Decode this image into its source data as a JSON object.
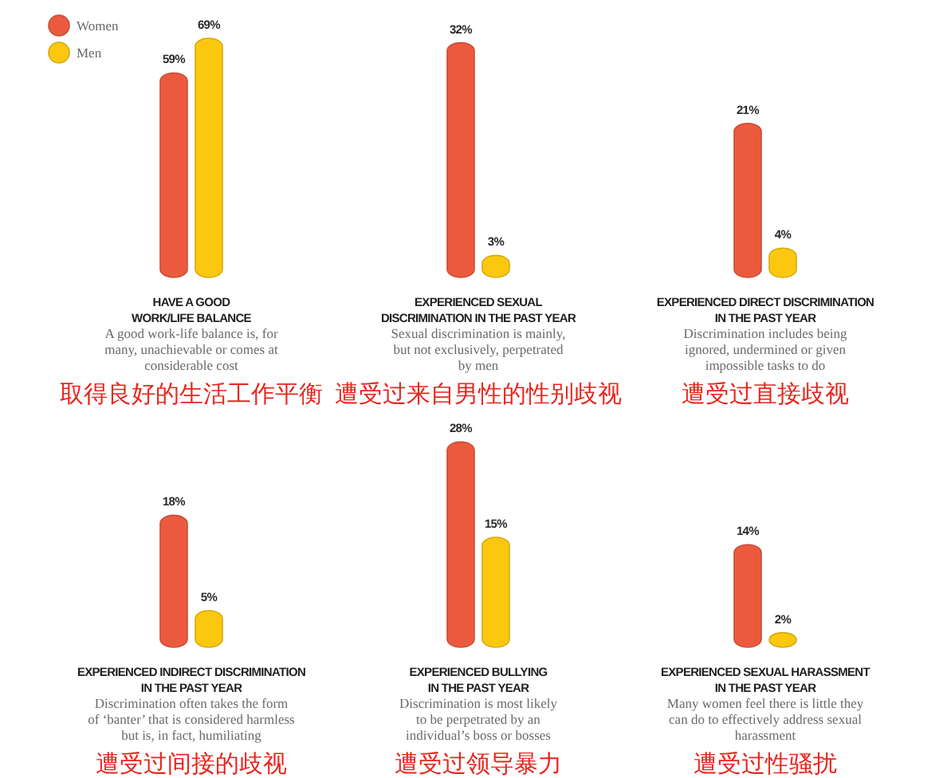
{
  "chart_data": [
    {
      "type": "bar",
      "title": "HAVE A GOOD\nWORK/LIFE BALANCE",
      "subtitle": "A good work-life balance is, for\nmany, unachievable or comes at\nconsiderable cost",
      "annotations": [
        "取得良好的生活工作平衡"
      ],
      "categories": [
        null
      ],
      "legend": "top left",
      "series": [
        {
          "name": "Women",
          "color": "#ec5a3e",
          "values": [
            59
          ],
          "value_labels": [
            "59%"
          ]
        },
        {
          "name": "Men",
          "color": "#fcc80f",
          "values": [
            69
          ],
          "value_labels": [
            "69%"
          ]
        }
      ]
    },
    {
      "type": "bar",
      "title": "EXPERIENCED SEXUAL\nDISCRIMINATION IN THE PAST YEAR",
      "subtitle": "Sexual discrimination is mainly,\nbut not exclusively, perpetrated\nby men",
      "annotations": [
        "遭受过来自男性的性别歧视"
      ],
      "categories": [
        null
      ],
      "series": [
        {
          "color": "#ec5a3e",
          "values": [
            32
          ],
          "value_labels": [
            "32%"
          ]
        },
        {
          "color": "#fcc80f",
          "values": [
            3
          ],
          "value_labels": [
            "3%"
          ]
        }
      ]
    },
    {
      "type": "bar",
      "title": "EXPERIENCED DIRECT DISCRIMINATION\nIN THE PAST YEAR",
      "subtitle": "Discrimination includes being\nignored, undermined or given\nimpossible tasks to do",
      "annotations": [
        "遭受过直接歧视"
      ],
      "categories": [
        null
      ],
      "series": [
        {
          "color": "#ec5a3e",
          "values": [
            21
          ],
          "value_labels": [
            "21%"
          ]
        },
        {
          "color": "#fcc80f",
          "values": [
            4
          ],
          "value_labels": [
            "4%"
          ]
        }
      ]
    },
    {
      "type": "bar",
      "title": "EXPERIENCED INDIRECT DISCRIMINATION\nIN THE PAST YEAR",
      "subtitle": "Discrimination often takes the form\nof ‘banter’ that is considered harmless\nbut is, in fact, humiliating",
      "annotations": [
        "遭受过间接的歧视"
      ],
      "categories": [
        null
      ],
      "series": [
        {
          "color": "#ec5a3e",
          "values": [
            18
          ],
          "value_labels": [
            "18%"
          ]
        },
        {
          "color": "#fcc80f",
          "values": [
            5
          ],
          "value_labels": [
            "5%"
          ]
        }
      ]
    },
    {
      "type": "bar",
      "title": "EXPERIENCED BULLYING\nIN THE PAST YEAR",
      "subtitle": "Discrimination is most likely\nto be perpetrated by an\nindividual’s boss or bosses",
      "annotations": [
        "遭受过领导暴力"
      ],
      "categories": [
        null
      ],
      "series": [
        {
          "color": "#ec5a3e",
          "values": [
            28
          ],
          "value_labels": [
            "28%"
          ]
        },
        {
          "color": "#fcc80f",
          "values": [
            15
          ],
          "value_labels": [
            "15%"
          ]
        }
      ]
    },
    {
      "type": "bar",
      "title": "EXPERIENCED SEXUAL HARASSMENT\nIN THE PAST YEAR",
      "subtitle": "Many women feel there is little they\ncan do to effectively address sexual\nharassment",
      "annotations": [
        "遭受过性骚扰"
      ],
      "categories": [
        null
      ],
      "series": [
        {
          "color": "#ec5a3e",
          "values": [
            14
          ],
          "value_labels": [
            "14%"
          ]
        },
        {
          "color": "#fcc80f",
          "values": [
            2
          ],
          "value_labels": [
            "2%"
          ]
        }
      ]
    }
  ]
}
